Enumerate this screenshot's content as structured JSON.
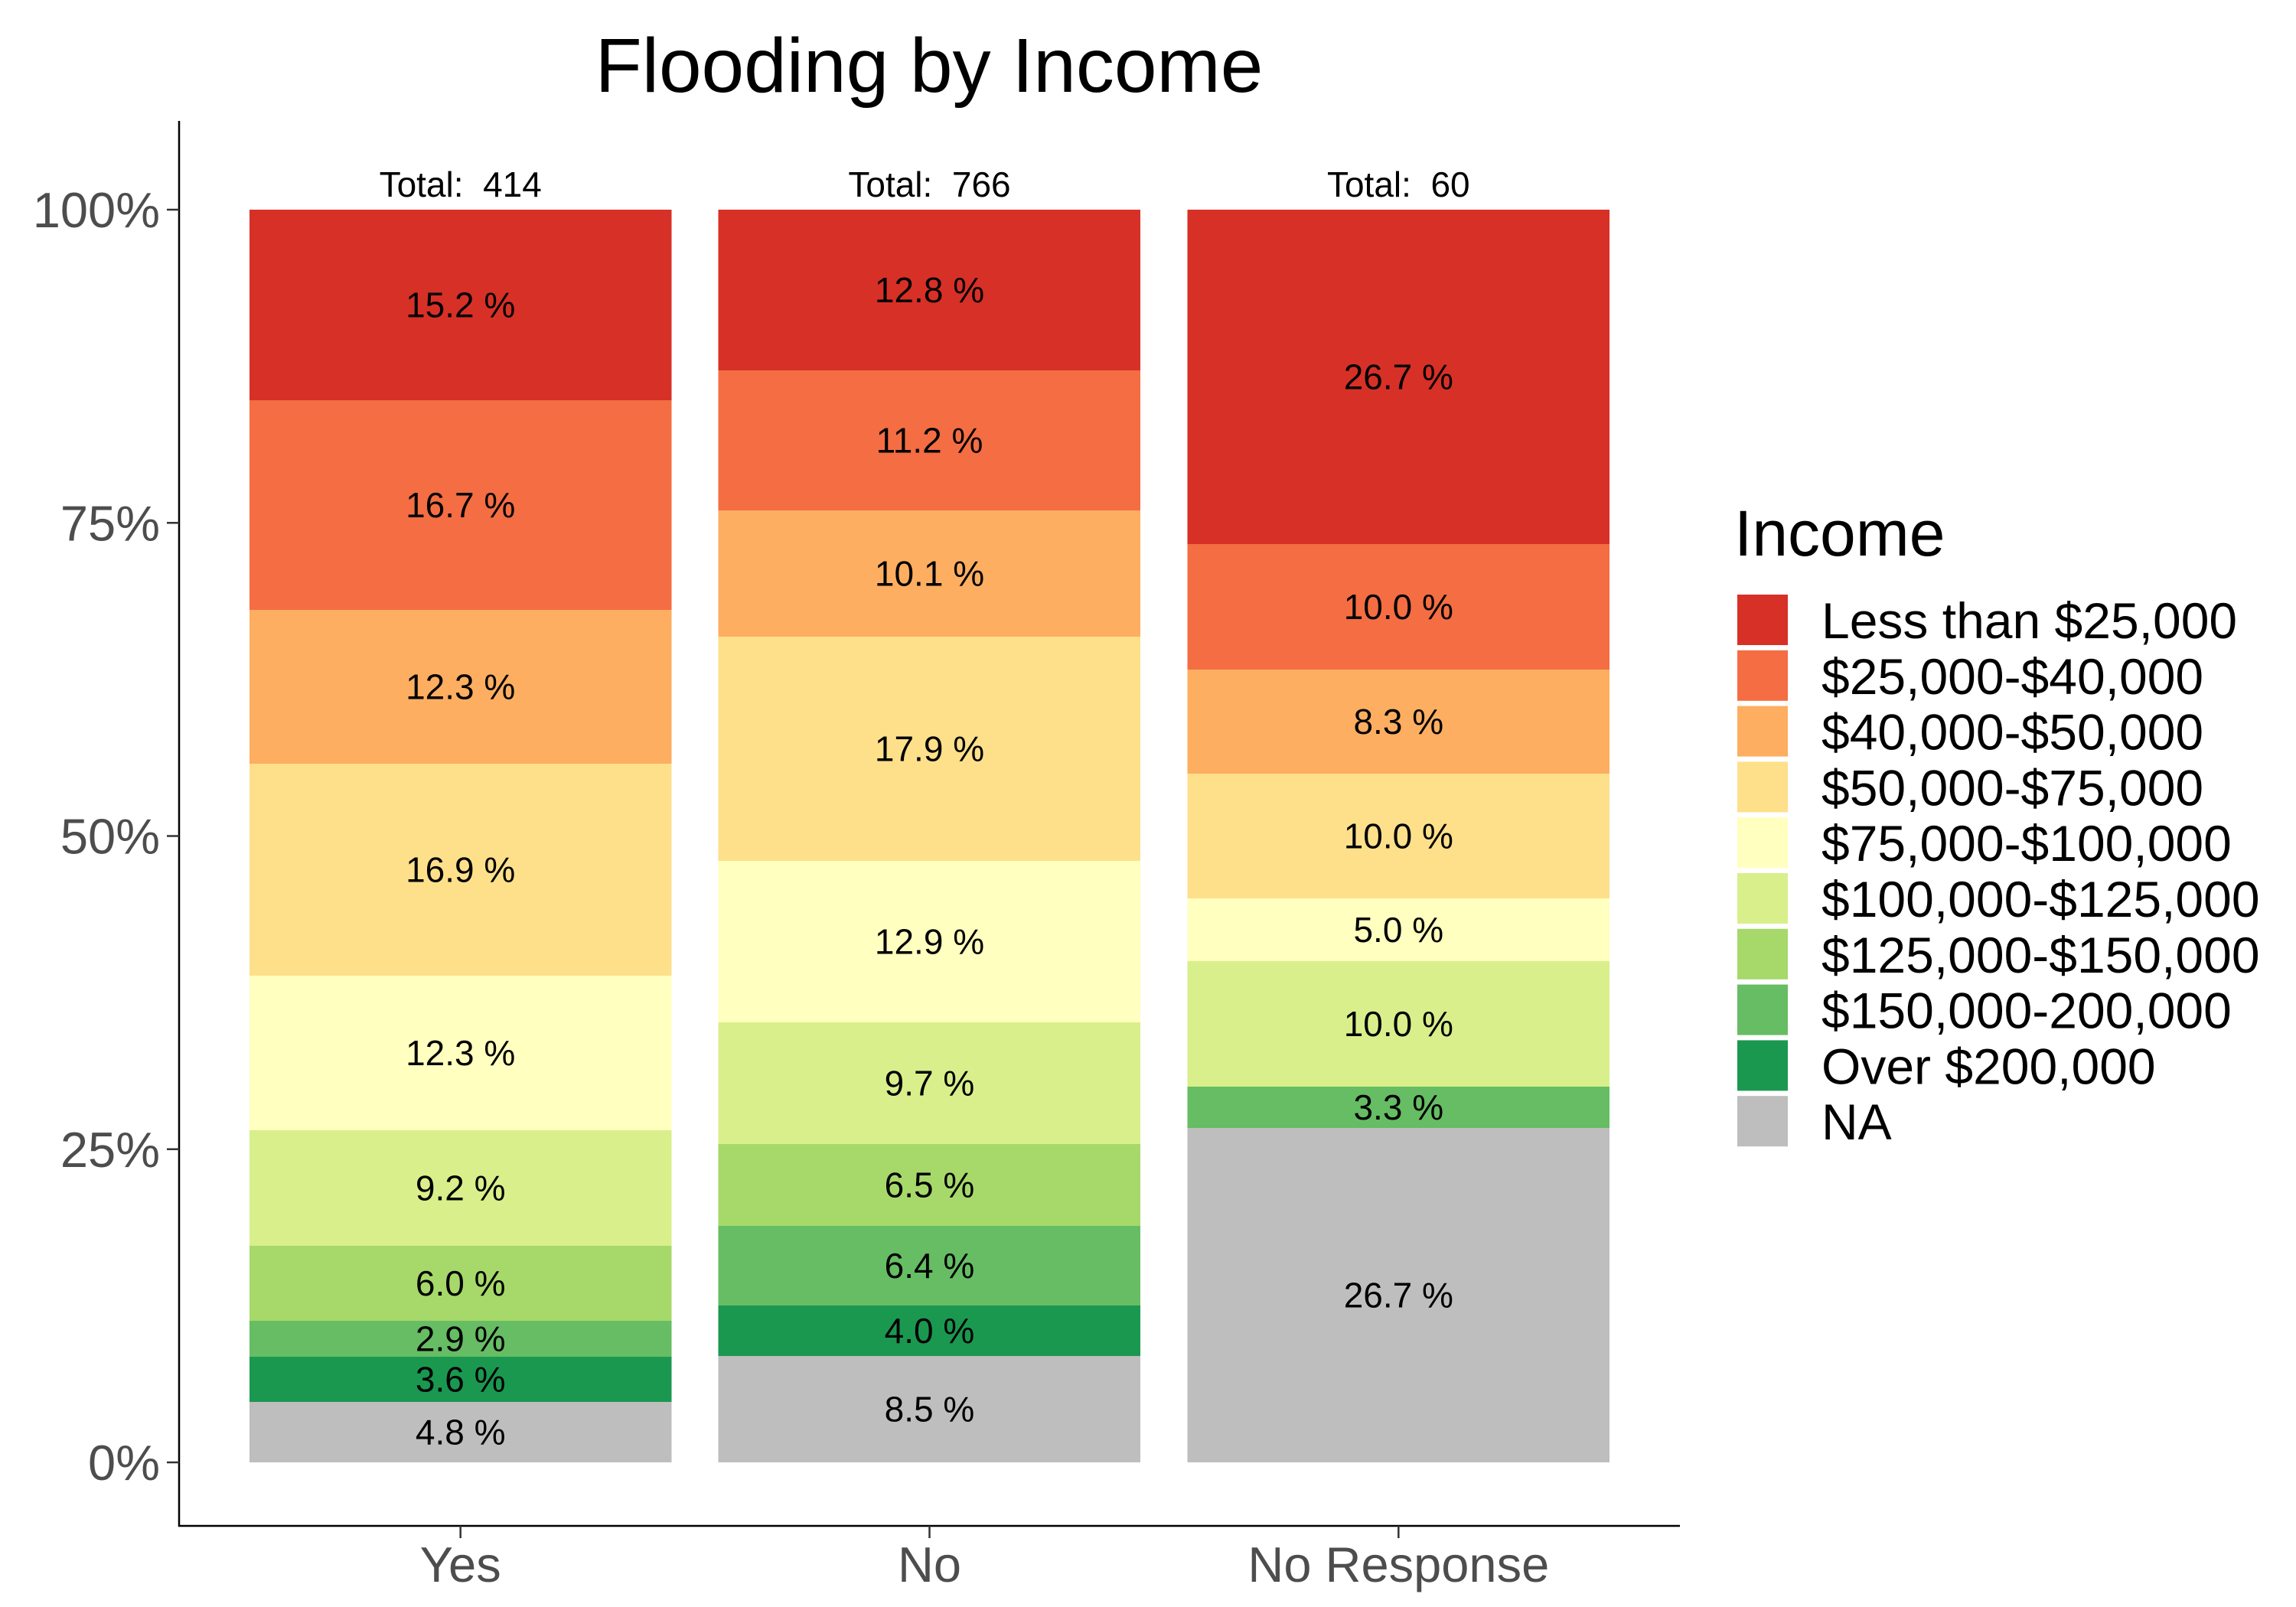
{
  "chart_data": {
    "type": "bar",
    "stacked": true,
    "normalized": true,
    "title": "Flooding by Income",
    "categories": [
      "Yes",
      "No",
      "No Response"
    ],
    "totals": [
      414,
      766,
      60
    ],
    "total_label_prefix": "Total:  ",
    "value_label_suffix": " %",
    "ylim": [
      0,
      100
    ],
    "yticks": [
      0,
      25,
      50,
      75,
      100
    ],
    "ytick_labels": [
      "0%",
      "25%",
      "50%",
      "75%",
      "100%"
    ],
    "grid": false,
    "legend": {
      "title": "Income",
      "position": "right"
    },
    "series": [
      {
        "name": "Less than $25,000",
        "color": "#D73027",
        "values": [
          15.2,
          12.8,
          26.7
        ]
      },
      {
        "name": "$25,000-$40,000",
        "color": "#F46D43",
        "values": [
          16.7,
          11.2,
          10.0
        ]
      },
      {
        "name": "$40,000-$50,000",
        "color": "#FDAE61",
        "values": [
          12.3,
          10.1,
          8.3
        ]
      },
      {
        "name": "$50,000-$75,000",
        "color": "#FEE08B",
        "values": [
          16.9,
          17.9,
          10.0
        ]
      },
      {
        "name": "$75,000-$100,000",
        "color": "#FFFFBF",
        "values": [
          12.3,
          12.9,
          5.0
        ]
      },
      {
        "name": "$100,000-$125,000",
        "color": "#D9EF8B",
        "values": [
          9.2,
          9.7,
          10.0
        ]
      },
      {
        "name": "$125,000-$150,000",
        "color": "#A6D96A",
        "values": [
          6.0,
          6.5,
          null
        ]
      },
      {
        "name": "$150,000-200,000",
        "color": "#66BD63",
        "values": [
          2.9,
          6.4,
          3.3
        ]
      },
      {
        "name": "Over $200,000",
        "color": "#1A9850",
        "values": [
          3.6,
          4.0,
          null
        ]
      },
      {
        "name": "NA",
        "color": "#BEBEBE",
        "values": [
          4.8,
          8.5,
          26.7
        ]
      }
    ]
  }
}
